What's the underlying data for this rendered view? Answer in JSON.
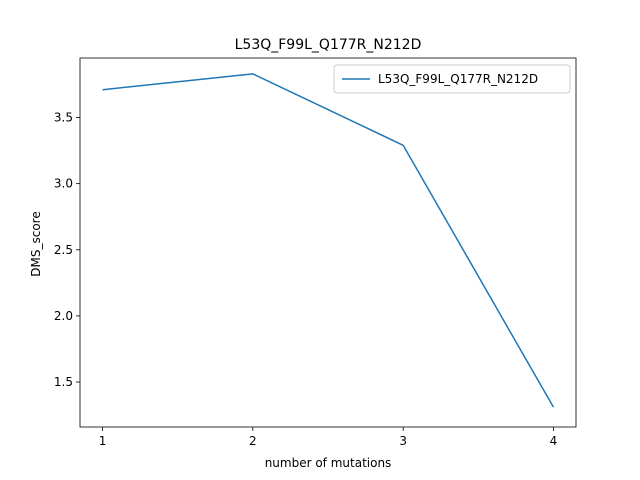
{
  "chart_data": {
    "type": "line",
    "title": "L53Q_F99L_Q177R_N212D",
    "xlabel": "number of mutations",
    "ylabel": "DMS_score",
    "x": [
      1,
      2,
      3,
      4
    ],
    "series": [
      {
        "name": "L53Q_F99L_Q177R_N212D",
        "values": [
          3.71,
          3.83,
          3.29,
          1.31
        ],
        "color": "#1f77b4"
      }
    ],
    "xlim": [
      0.85,
      4.15
    ],
    "ylim": [
      1.16,
      3.95
    ],
    "xticks": [
      1,
      2,
      3,
      4
    ],
    "yticks": [
      1.5,
      2.0,
      2.5,
      3.0,
      3.5
    ],
    "ytick_labels": [
      "1.5",
      "2.0",
      "2.5",
      "3.0",
      "3.5"
    ],
    "grid": false,
    "legend_position": "upper-right"
  }
}
